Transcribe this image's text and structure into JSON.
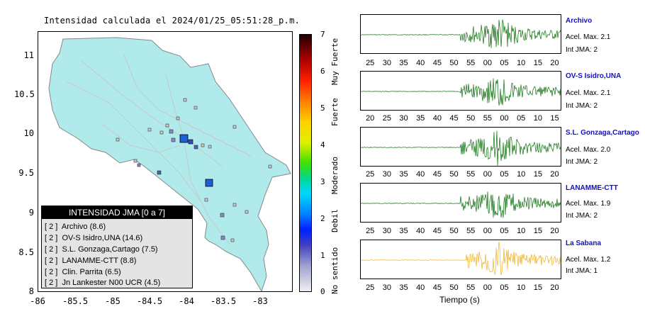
{
  "map": {
    "title": "Intensidad calculada el 2024/01/25_05:51:28_p.m.",
    "y_ticks": [
      "11",
      "10.5",
      "10",
      "9.5",
      "9",
      "8.5",
      "8"
    ],
    "x_ticks": [
      "-86",
      "-85.5",
      "-85",
      "-84.5",
      "-84",
      "-83.5",
      "-83"
    ],
    "land_color": "#b0eaea",
    "epicenter_color": "#1a5fd8"
  },
  "legend": {
    "title": "INTENSIDAD JMA [0 a 7]",
    "rows": [
      {
        "level": "[ 2 ]",
        "label": "Archivo (8.6)"
      },
      {
        "level": "[ 2 ]",
        "label": "OV-S Isidro,UNA (14.6)"
      },
      {
        "level": "[ 2 ]",
        "label": "S.L. Gonzaga,Cartago (7.5)"
      },
      {
        "level": "[ 2 ]",
        "label": "LANAMME-CTT (8.8)"
      },
      {
        "level": "[ 2 ]",
        "label": "Clin. Parrita (6.5)"
      },
      {
        "level": "[ 2 ]",
        "label": "Jn Lankester N00 UCR (4.5)"
      }
    ]
  },
  "colorbar": {
    "ticks": [
      "7",
      "6",
      "5",
      "4",
      "3",
      "2",
      "1",
      "0"
    ],
    "labels": [
      "Muy Fuerte",
      "Fuerte",
      "Moderado",
      "Debil",
      "No sentido"
    ]
  },
  "stations": [
    {
      "name": "Archivo",
      "acel": "Acel. Max. 2.1",
      "jma": "Int JMA: 2",
      "color": "#0a6e0a",
      "ticks": [
        "25",
        "30",
        "35",
        "40",
        "45",
        "50",
        "55",
        "00",
        "05",
        "10",
        "15",
        "20"
      ]
    },
    {
      "name": "OV-S Isidro,UNA",
      "acel": "Acel. Max. 2.1",
      "jma": "Int JMA: 2",
      "color": "#0a6e0a",
      "ticks": [
        "20",
        "25",
        "30",
        "35",
        "40",
        "45",
        "50",
        "55",
        "00",
        "05",
        "10",
        "15"
      ]
    },
    {
      "name": "S.L. Gonzaga,Cartago",
      "acel": "Acel. Max. 2.0",
      "jma": "Int JMA: 2",
      "color": "#0a6e0a",
      "ticks": [
        "25",
        "30",
        "35",
        "40",
        "45",
        "50",
        "55",
        "00",
        "05",
        "10",
        "15",
        "20"
      ]
    },
    {
      "name": "LANAMME-CTT",
      "acel": "Acel. Max. 1.9",
      "jma": "Int JMA: 2",
      "color": "#0a6e0a",
      "ticks": [
        "25",
        "30",
        "35",
        "40",
        "45",
        "50",
        "55",
        "00",
        "05",
        "10",
        "15",
        "20"
      ]
    },
    {
      "name": "La Sabana",
      "acel": "Acel. Max. 1.2",
      "jma": "Int JMA: 1",
      "color": "#f0b020",
      "ticks": [
        "25",
        "30",
        "35",
        "40",
        "45",
        "50",
        "55",
        "00",
        "05",
        "10",
        "15",
        "20"
      ]
    }
  ],
  "waveform_xlabel": "Tiempo (s)"
}
